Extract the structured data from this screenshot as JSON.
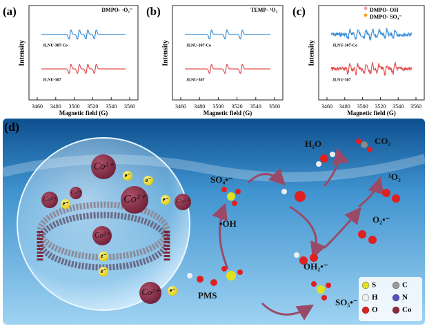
{
  "panels": [
    {
      "label": "(a)",
      "legend": [
        "DMPO- ·O₂⁻"
      ],
      "y_label": "Intensity",
      "x_label": "Magnetic field (G)",
      "x_ticks": [
        "3460",
        "3480",
        "3500",
        "3520",
        "3540",
        "3560"
      ],
      "curves": [
        "JLNU-307-Co",
        "JLNU-307"
      ]
    },
    {
      "label": "(b)",
      "legend": [
        "TEMP- ¹O₂"
      ],
      "y_label": "Intensity",
      "x_label": "Magnetic field (G)",
      "x_ticks": [
        "3460",
        "3480",
        "3500",
        "3520",
        "3540",
        "3560"
      ],
      "curves": [
        "JLNU-307-Co",
        "JLNU-307"
      ]
    },
    {
      "label": "(c)",
      "legend": [
        "DMPO- OH",
        "DMPO- SO₄⁻"
      ],
      "y_label": "Intensity",
      "x_label": "Magnetic field (G)",
      "x_ticks": [
        "3460",
        "3480",
        "3500",
        "3520",
        "3540",
        "3560"
      ],
      "curves": [
        "JLNU-307-Co",
        "JLNU-307"
      ]
    }
  ],
  "scheme": {
    "label": "(d)",
    "ions": [
      "Co²⁺",
      "Co²⁺",
      "Co²⁺",
      "Co²⁺",
      "Co²⁺",
      "Co²⁺",
      "Co²⁺"
    ],
    "electrons": [
      "e⁻",
      "e⁻",
      "e⁻",
      "e⁻",
      "e⁻",
      "e⁻",
      "e⁻"
    ],
    "species": [
      "SO₄•⁻",
      "•OH",
      "H₂O",
      "CO₂",
      "¹O₂",
      "O₂•⁻",
      "OH₂•⁻",
      "PMS",
      "SO₅•⁻"
    ],
    "legend": [
      "S",
      "C",
      "H",
      "N",
      "O",
      "Co"
    ]
  }
}
